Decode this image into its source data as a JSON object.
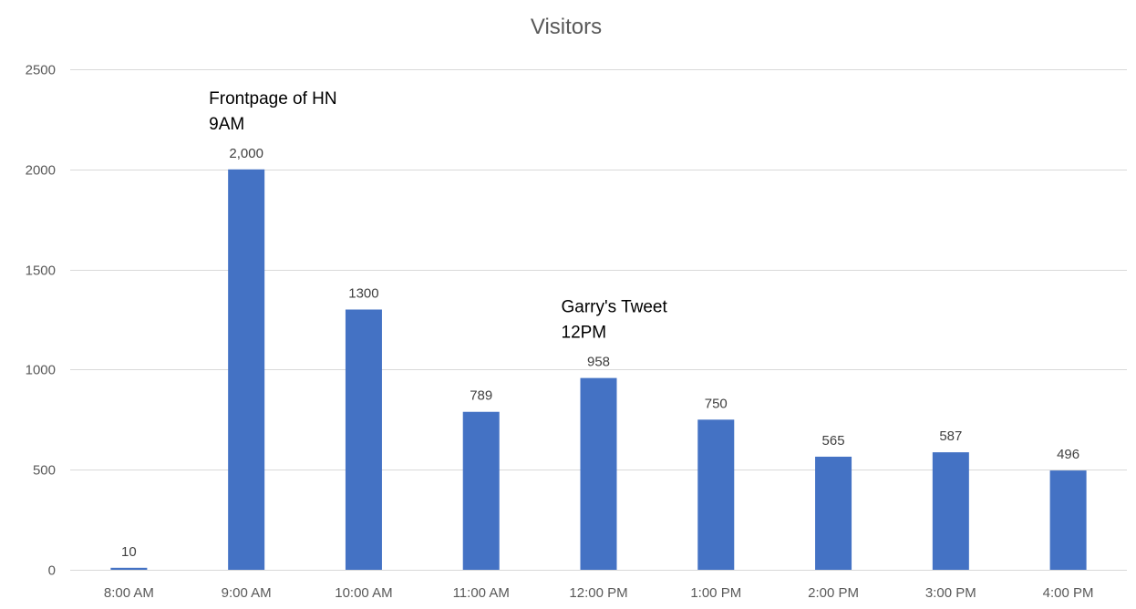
{
  "chart_data": {
    "type": "bar",
    "title": "Visitors",
    "xlabel": "",
    "ylabel": "",
    "categories": [
      "8:00 AM",
      "9:00 AM",
      "10:00 AM",
      "11:00 AM",
      "12:00 PM",
      "1:00 PM",
      "2:00 PM",
      "3:00 PM",
      "4:00 PM"
    ],
    "values": [
      10,
      2000,
      1300,
      789,
      958,
      750,
      565,
      587,
      496
    ],
    "data_labels": [
      "10",
      "2,000",
      "1300",
      "789",
      "958",
      "750",
      "565",
      "587",
      "496"
    ],
    "ylim": [
      0,
      2500
    ],
    "yticks": [
      0,
      500,
      1000,
      1500,
      2000,
      2500
    ],
    "grid": true,
    "legend": "none",
    "bar_color": "#4472c4",
    "annotations": [
      {
        "category": "9:00 AM",
        "lines": [
          "Frontpage of HN",
          "9AM"
        ]
      },
      {
        "category": "12:00 PM",
        "lines": [
          "Garry's Tweet",
          "12PM"
        ]
      }
    ]
  }
}
